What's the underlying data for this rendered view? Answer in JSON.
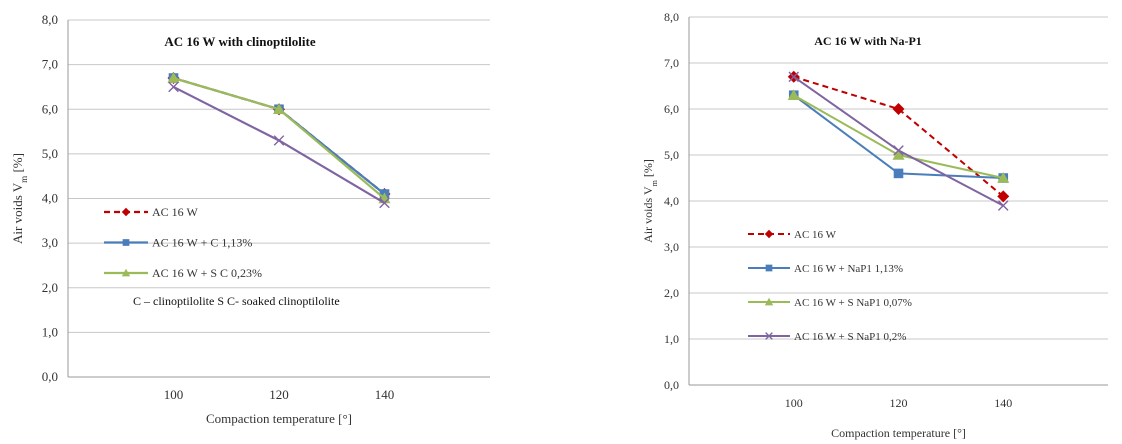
{
  "chart_data": [
    {
      "type": "line",
      "title": "AC 16 W with clinoptilolite",
      "xlabel": "Compaction temperature [°]",
      "ylabel": "Air voids  V",
      "ylabel_sub": "m",
      "ylabel_unit": " [%]",
      "categories": [
        "100",
        "120",
        "140"
      ],
      "ylim": [
        0,
        8
      ],
      "yticks": [
        "0,0",
        "1,0",
        "2,0",
        "3,0",
        "4,0",
        "5,0",
        "6,0",
        "7,0",
        "8,0"
      ],
      "grid": true,
      "legend_position": "left",
      "series": [
        {
          "name": "AC 16 W",
          "values": [
            6.7,
            6.0,
            4.1
          ],
          "color": "#c00000",
          "marker": "diamond",
          "dash": true
        },
        {
          "name": "AC 16 W + C 1,13%",
          "values": [
            6.7,
            6.0,
            4.1
          ],
          "color": "#4a7ebb",
          "marker": "square",
          "dash": false
        },
        {
          "name": "AC 16 W + S C 0,23%",
          "values": [
            6.7,
            6.0,
            4.0
          ],
          "color": "#9bbb59",
          "marker": "triangle",
          "dash": false
        },
        {
          "name": "",
          "values": [
            6.5,
            5.3,
            3.9
          ],
          "color": "#8064a2",
          "marker": "x",
          "dash": false,
          "legend": false
        }
      ],
      "note": "C  –  clinoptilolite   S C-  soaked  clinoptilolite"
    },
    {
      "type": "line",
      "title": "AC 16 W with Na-P1",
      "xlabel": "Compaction temperature [°]",
      "ylabel": "Air voids  V",
      "ylabel_sub": "m",
      "ylabel_unit": " [%]",
      "categories": [
        "100",
        "120",
        "140"
      ],
      "ylim": [
        0,
        8
      ],
      "yticks": [
        "0,0",
        "1,0",
        "2,0",
        "3,0",
        "4,0",
        "5,0",
        "6,0",
        "7,0",
        "8,0"
      ],
      "grid": true,
      "legend_position": "left",
      "series": [
        {
          "name": "AC 16 W",
          "values": [
            6.7,
            6.0,
            4.1
          ],
          "color": "#c00000",
          "marker": "diamond",
          "dash": true
        },
        {
          "name": "AC 16 W + NaP1 1,13%",
          "values": [
            6.3,
            4.6,
            4.5
          ],
          "color": "#4a7ebb",
          "marker": "square",
          "dash": false
        },
        {
          "name": "AC 16 W + S NaP1 0,07%",
          "values": [
            6.3,
            5.0,
            4.5
          ],
          "color": "#9bbb59",
          "marker": "triangle",
          "dash": false
        },
        {
          "name": "AC 16 W + S NaP1 0,2%",
          "values": [
            6.7,
            5.1,
            3.9
          ],
          "color": "#8064a2",
          "marker": "x",
          "dash": false
        }
      ],
      "note": ""
    }
  ]
}
